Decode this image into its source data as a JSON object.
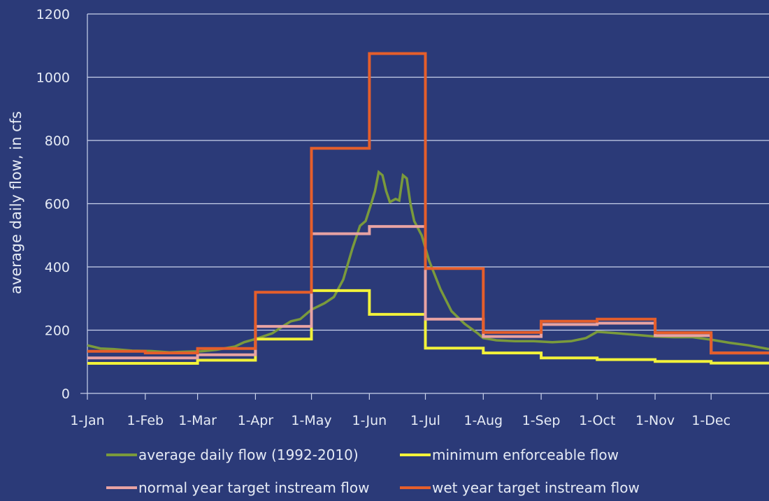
{
  "chart_data": {
    "type": "line",
    "title": "",
    "xlabel": "",
    "ylabel": "average daily flow, in cfs",
    "ylim": [
      0,
      1200
    ],
    "y_ticks": [
      0,
      200,
      400,
      600,
      800,
      1000,
      1200
    ],
    "x_tick_labels": [
      "1-Jan",
      "1-Feb",
      "1-Mar",
      "1-Apr",
      "1-May",
      "1-Jun",
      "1-Jul",
      "1-Aug",
      "1-Sep",
      "1-Oct",
      "1-Nov",
      "1-Dec"
    ],
    "x_tick_days": [
      1,
      32,
      60,
      91,
      121,
      152,
      182,
      213,
      244,
      274,
      305,
      335
    ],
    "x_unit": "day of year",
    "xlim": [
      1,
      366
    ],
    "grid": "horizontal",
    "legend_position": "bottom",
    "series": [
      {
        "name": "average daily flow (1992-2010)",
        "color": "#7a9a3c",
        "style": "continuous",
        "points": [
          [
            1,
            152
          ],
          [
            8,
            142
          ],
          [
            15,
            140
          ],
          [
            25,
            135
          ],
          [
            35,
            134
          ],
          [
            45,
            130
          ],
          [
            55,
            132
          ],
          [
            62,
            133
          ],
          [
            70,
            138
          ],
          [
            80,
            148
          ],
          [
            85,
            162
          ],
          [
            91,
            172
          ],
          [
            100,
            190
          ],
          [
            105,
            210
          ],
          [
            110,
            228
          ],
          [
            115,
            235
          ],
          [
            121,
            265
          ],
          [
            128,
            285
          ],
          [
            133,
            305
          ],
          [
            138,
            360
          ],
          [
            143,
            460
          ],
          [
            147,
            530
          ],
          [
            150,
            545
          ],
          [
            153,
            600
          ],
          [
            155,
            640
          ],
          [
            157,
            700
          ],
          [
            159,
            690
          ],
          [
            161,
            640
          ],
          [
            163,
            605
          ],
          [
            166,
            615
          ],
          [
            168,
            610
          ],
          [
            170,
            690
          ],
          [
            172,
            680
          ],
          [
            174,
            600
          ],
          [
            176,
            545
          ],
          [
            180,
            500
          ],
          [
            184,
            420
          ],
          [
            190,
            330
          ],
          [
            196,
            260
          ],
          [
            203,
            220
          ],
          [
            210,
            190
          ],
          [
            213,
            175
          ],
          [
            220,
            168
          ],
          [
            230,
            165
          ],
          [
            240,
            165
          ],
          [
            250,
            162
          ],
          [
            260,
            165
          ],
          [
            268,
            175
          ],
          [
            274,
            195
          ],
          [
            285,
            190
          ],
          [
            295,
            185
          ],
          [
            305,
            180
          ],
          [
            315,
            178
          ],
          [
            325,
            178
          ],
          [
            335,
            170
          ],
          [
            345,
            160
          ],
          [
            355,
            152
          ],
          [
            366,
            140
          ]
        ]
      },
      {
        "name": "minimum enforceable flow",
        "color": "#f2f23a",
        "style": "step",
        "steps": [
          [
            1,
            95
          ],
          [
            60,
            95
          ],
          [
            60,
            105
          ],
          [
            91,
            105
          ],
          [
            91,
            172
          ],
          [
            121,
            172
          ],
          [
            121,
            325
          ],
          [
            152,
            325
          ],
          [
            152,
            250
          ],
          [
            182,
            250
          ],
          [
            182,
            143
          ],
          [
            213,
            143
          ],
          [
            213,
            128
          ],
          [
            244,
            128
          ],
          [
            244,
            112
          ],
          [
            274,
            112
          ],
          [
            274,
            107
          ],
          [
            305,
            107
          ],
          [
            305,
            101
          ],
          [
            335,
            101
          ],
          [
            335,
            96
          ],
          [
            366,
            96
          ]
        ]
      },
      {
        "name": "normal year target instream flow",
        "color": "#e8a3a3",
        "style": "step",
        "steps": [
          [
            1,
            112
          ],
          [
            60,
            112
          ],
          [
            60,
            122
          ],
          [
            91,
            122
          ],
          [
            91,
            212
          ],
          [
            121,
            212
          ],
          [
            121,
            505
          ],
          [
            152,
            505
          ],
          [
            152,
            528
          ],
          [
            182,
            528
          ],
          [
            182,
            235
          ],
          [
            213,
            235
          ],
          [
            213,
            180
          ],
          [
            244,
            180
          ],
          [
            244,
            218
          ],
          [
            274,
            218
          ],
          [
            274,
            222
          ],
          [
            305,
            222
          ],
          [
            305,
            183
          ],
          [
            335,
            183
          ],
          [
            335,
            128
          ],
          [
            366,
            128
          ]
        ]
      },
      {
        "name": "wet year target instream flow",
        "color": "#e55e2b",
        "style": "step",
        "steps": [
          [
            1,
            133
          ],
          [
            32,
            133
          ],
          [
            32,
            128
          ],
          [
            60,
            128
          ],
          [
            60,
            142
          ],
          [
            91,
            142
          ],
          [
            91,
            320
          ],
          [
            121,
            320
          ],
          [
            121,
            775
          ],
          [
            152,
            775
          ],
          [
            152,
            1075
          ],
          [
            182,
            1075
          ],
          [
            182,
            395
          ],
          [
            213,
            395
          ],
          [
            213,
            193
          ],
          [
            244,
            193
          ],
          [
            244,
            228
          ],
          [
            274,
            228
          ],
          [
            274,
            235
          ],
          [
            305,
            235
          ],
          [
            305,
            192
          ],
          [
            335,
            192
          ],
          [
            335,
            128
          ],
          [
            366,
            128
          ]
        ]
      }
    ]
  }
}
